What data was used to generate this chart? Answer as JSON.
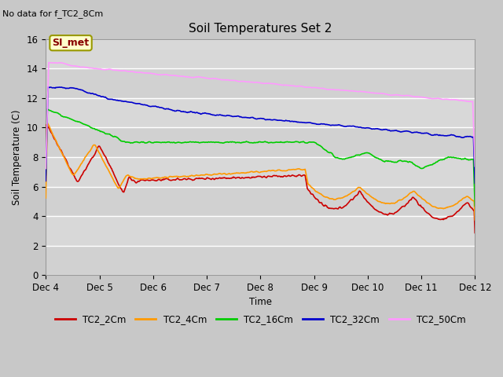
{
  "title": "Soil Temperatures Set 2",
  "subtitle": "No data for f_TC2_8Cm",
  "xlabel": "Time",
  "ylabel": "Soil Temperature (C)",
  "ylim": [
    0,
    16
  ],
  "yticks": [
    0,
    2,
    4,
    6,
    8,
    10,
    12,
    14,
    16
  ],
  "x_start": 4.0,
  "x_end": 12.0,
  "xtick_positions": [
    4,
    5,
    6,
    7,
    8,
    9,
    10,
    11,
    12
  ],
  "xtick_labels": [
    "Dec 4",
    "Dec 5",
    "Dec 6",
    "Dec 7",
    "Dec 8",
    "Dec 9",
    "Dec 10",
    "Dec 11",
    "Dec 12"
  ],
  "bg_color": "#d8d8d8",
  "plot_bg_color": "#d8d8d8",
  "grid_color": "#ffffff",
  "series": {
    "TC2_2Cm": {
      "color": "#cc0000",
      "lw": 1.2
    },
    "TC2_4Cm": {
      "color": "#ff9900",
      "lw": 1.2
    },
    "TC2_16Cm": {
      "color": "#00cc00",
      "lw": 1.2
    },
    "TC2_32Cm": {
      "color": "#0000cc",
      "lw": 1.2
    },
    "TC2_50Cm": {
      "color": "#ff99ff",
      "lw": 1.2
    }
  },
  "si_met_box": {
    "text": "SI_met",
    "facecolor": "#ffffcc",
    "edgecolor": "#999900",
    "text_color": "#880000"
  },
  "figsize": [
    6.4,
    4.8
  ],
  "dpi": 100
}
